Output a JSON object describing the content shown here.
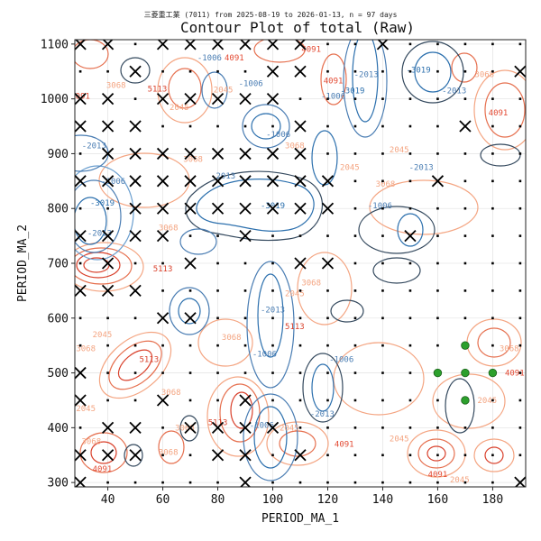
{
  "chart_data": {
    "type": "contour",
    "title": "Contour Plot of total (Raw)",
    "subtitle": "三菱重工業 (7011) from 2025-08-19 to 2026-01-13, n = 97 days",
    "xlabel": "PERIOD_MA_1",
    "ylabel": "PERIOD_MA_2",
    "xlim": [
      28,
      192
    ],
    "ylim": [
      292,
      1108
    ],
    "x_ticks": [
      "40",
      "60",
      "80",
      "100",
      "120",
      "140",
      "160",
      "180"
    ],
    "y_ticks": [
      "300",
      "400",
      "500",
      "600",
      "700",
      "800",
      "900",
      "1000",
      "1100"
    ],
    "grid": true,
    "colormap": "diverging blue-red",
    "colors": {
      "negative": "#2b6fad",
      "negative_dark": "#34495e",
      "positive": "#d9402b",
      "positive_light": "#f4a582",
      "best_marker": "#2ca02c"
    },
    "contour_labels": [
      {
        "x": 30,
        "y": 1000,
        "text": "4091",
        "color": "#e34a33"
      },
      {
        "x": 43,
        "y": 1020,
        "text": "3068",
        "color": "#f4a582"
      },
      {
        "x": 35,
        "y": 910,
        "text": "-2013",
        "color": "#4a7db3"
      },
      {
        "x": 42,
        "y": 845,
        "text": "-1006",
        "color": "#4a7db3"
      },
      {
        "x": 38,
        "y": 805,
        "text": "-3019",
        "color": "#2b6fad"
      },
      {
        "x": 66,
        "y": 980,
        "text": "2045",
        "color": "#f4a582"
      },
      {
        "x": 58,
        "y": 1013,
        "text": "5113",
        "color": "#d9402b"
      },
      {
        "x": 71,
        "y": 885,
        "text": "3068",
        "color": "#f4a582"
      },
      {
        "x": 82,
        "y": 1012,
        "text": "2045",
        "color": "#f4a582"
      },
      {
        "x": 86,
        "y": 1070,
        "text": "4091",
        "color": "#e34a33"
      },
      {
        "x": 77,
        "y": 1070,
        "text": "-1006",
        "color": "#4a7db3"
      },
      {
        "x": 92,
        "y": 1023,
        "text": "-1006",
        "color": "#4a7db3"
      },
      {
        "x": 114,
        "y": 1086,
        "text": "4091",
        "color": "#e34a33"
      },
      {
        "x": 122,
        "y": 1028,
        "text": "4091",
        "color": "#e34a33"
      },
      {
        "x": 129,
        "y": 1010,
        "text": "-3019",
        "color": "#2b6fad"
      },
      {
        "x": 134,
        "y": 1040,
        "text": "-2013",
        "color": "#4a7db3"
      },
      {
        "x": 153,
        "y": 1048,
        "text": "-3019",
        "color": "#2b6fad"
      },
      {
        "x": 177,
        "y": 1040,
        "text": "3068",
        "color": "#f4a582"
      },
      {
        "x": 166,
        "y": 1010,
        "text": "-2013",
        "color": "#4a7db3"
      },
      {
        "x": 182,
        "y": 970,
        "text": "4091",
        "color": "#e34a33"
      },
      {
        "x": 154,
        "y": 870,
        "text": "-2013",
        "color": "#4a7db3"
      },
      {
        "x": 146,
        "y": 902,
        "text": "2045",
        "color": "#f4a582"
      },
      {
        "x": 141,
        "y": 840,
        "text": "3068",
        "color": "#f4a582"
      },
      {
        "x": 128,
        "y": 870,
        "text": "2045",
        "color": "#f4a582"
      },
      {
        "x": 122,
        "y": 1000,
        "text": "-1006",
        "color": "#4a7db3"
      },
      {
        "x": 102,
        "y": 930,
        "text": "-1006",
        "color": "#4a7db3"
      },
      {
        "x": 108,
        "y": 910,
        "text": "3068",
        "color": "#f4a582"
      },
      {
        "x": 100,
        "y": 800,
        "text": "-3019",
        "color": "#2b6fad"
      },
      {
        "x": 82,
        "y": 855,
        "text": "-2013",
        "color": "#4a7db3"
      },
      {
        "x": 139,
        "y": 800,
        "text": "-1006",
        "color": "#4a7db3"
      },
      {
        "x": 60,
        "y": 685,
        "text": "5113",
        "color": "#d9402b"
      },
      {
        "x": 62,
        "y": 760,
        "text": "3068",
        "color": "#f4a582"
      },
      {
        "x": 37,
        "y": 750,
        "text": "-2013",
        "color": "#4a7db3"
      },
      {
        "x": 114,
        "y": 660,
        "text": "3068",
        "color": "#f4a582"
      },
      {
        "x": 108,
        "y": 640,
        "text": "2045",
        "color": "#f4a582"
      },
      {
        "x": 100,
        "y": 610,
        "text": "-2013",
        "color": "#4a7db3"
      },
      {
        "x": 108,
        "y": 580,
        "text": "5113",
        "color": "#d9402b"
      },
      {
        "x": 125,
        "y": 520,
        "text": "-1006",
        "color": "#4a7db3"
      },
      {
        "x": 97,
        "y": 530,
        "text": "-1006",
        "color": "#4a7db3"
      },
      {
        "x": 85,
        "y": 560,
        "text": "3068",
        "color": "#f4a582"
      },
      {
        "x": 55,
        "y": 520,
        "text": "5113",
        "color": "#d9402b"
      },
      {
        "x": 38,
        "y": 565,
        "text": "2045",
        "color": "#f4a582"
      },
      {
        "x": 32,
        "y": 540,
        "text": "3068",
        "color": "#f4a582"
      },
      {
        "x": 63,
        "y": 460,
        "text": "3068",
        "color": "#f4a582"
      },
      {
        "x": 32,
        "y": 430,
        "text": "2045",
        "color": "#f4a582"
      },
      {
        "x": 68,
        "y": 395,
        "text": "3068",
        "color": "#f4a582"
      },
      {
        "x": 80,
        "y": 405,
        "text": "5113",
        "color": "#d9402b"
      },
      {
        "x": 96,
        "y": 400,
        "text": "-1006",
        "color": "#4a7db3"
      },
      {
        "x": 106,
        "y": 395,
        "text": "2045",
        "color": "#f4a582"
      },
      {
        "x": 118,
        "y": 420,
        "text": "-2013",
        "color": "#4a7db3"
      },
      {
        "x": 34,
        "y": 370,
        "text": "3068",
        "color": "#f4a582"
      },
      {
        "x": 38,
        "y": 320,
        "text": "4091",
        "color": "#e34a33"
      },
      {
        "x": 62,
        "y": 350,
        "text": "3068",
        "color": "#f4a582"
      },
      {
        "x": 126,
        "y": 365,
        "text": "4091",
        "color": "#e34a33"
      },
      {
        "x": 146,
        "y": 375,
        "text": "2045",
        "color": "#f4a582"
      },
      {
        "x": 160,
        "y": 310,
        "text": "4091",
        "color": "#e34a33"
      },
      {
        "x": 178,
        "y": 445,
        "text": "2045",
        "color": "#f4a582"
      },
      {
        "x": 186,
        "y": 540,
        "text": "3068",
        "color": "#f4a582"
      },
      {
        "x": 188,
        "y": 495,
        "text": "4091",
        "color": "#e34a33"
      },
      {
        "x": 168,
        "y": 300,
        "text": "2045",
        "color": "#f4a582"
      }
    ],
    "x_markers": [
      [
        30,
        1100
      ],
      [
        40,
        1100
      ],
      [
        60,
        1100
      ],
      [
        70,
        1100
      ],
      [
        80,
        1100
      ],
      [
        90,
        1100
      ],
      [
        100,
        1100
      ],
      [
        110,
        1100
      ],
      [
        140,
        1100
      ],
      [
        50,
        1050
      ],
      [
        100,
        1050
      ],
      [
        110,
        1050
      ],
      [
        190,
        1050
      ],
      [
        30,
        1000
      ],
      [
        40,
        1000
      ],
      [
        60,
        1000
      ],
      [
        70,
        1000
      ],
      [
        80,
        1000
      ],
      [
        90,
        1000
      ],
      [
        100,
        1000
      ],
      [
        30,
        950
      ],
      [
        40,
        950
      ],
      [
        50,
        950
      ],
      [
        110,
        950
      ],
      [
        170,
        950
      ],
      [
        40,
        900
      ],
      [
        50,
        900
      ],
      [
        60,
        900
      ],
      [
        70,
        900
      ],
      [
        80,
        900
      ],
      [
        90,
        900
      ],
      [
        100,
        900
      ],
      [
        110,
        900
      ],
      [
        30,
        850
      ],
      [
        40,
        850
      ],
      [
        50,
        850
      ],
      [
        60,
        850
      ],
      [
        70,
        850
      ],
      [
        80,
        850
      ],
      [
        90,
        850
      ],
      [
        100,
        850
      ],
      [
        110,
        850
      ],
      [
        120,
        850
      ],
      [
        160,
        850
      ],
      [
        50,
        800
      ],
      [
        60,
        800
      ],
      [
        70,
        800
      ],
      [
        80,
        800
      ],
      [
        90,
        800
      ],
      [
        100,
        800
      ],
      [
        110,
        800
      ],
      [
        120,
        800
      ],
      [
        30,
        750
      ],
      [
        40,
        750
      ],
      [
        50,
        750
      ],
      [
        60,
        750
      ],
      [
        90,
        750
      ],
      [
        150,
        750
      ],
      [
        40,
        700
      ],
      [
        70,
        700
      ],
      [
        110,
        700
      ],
      [
        120,
        700
      ],
      [
        30,
        650
      ],
      [
        40,
        650
      ],
      [
        50,
        650
      ],
      [
        60,
        600
      ],
      [
        70,
        600
      ],
      [
        30,
        500
      ],
      [
        30,
        450
      ],
      [
        60,
        450
      ],
      [
        90,
        450
      ],
      [
        40,
        400
      ],
      [
        50,
        400
      ],
      [
        70,
        400
      ],
      [
        80,
        400
      ],
      [
        90,
        400
      ],
      [
        100,
        400
      ],
      [
        30,
        350
      ],
      [
        40,
        350
      ],
      [
        50,
        350
      ],
      [
        80,
        350
      ],
      [
        90,
        350
      ],
      [
        110,
        350
      ],
      [
        30,
        300
      ],
      [
        90,
        300
      ],
      [
        190,
        300
      ]
    ],
    "dot_grid": {
      "x_start": 30,
      "x_end": 190,
      "x_step": 10,
      "y_start": 300,
      "y_end": 1100,
      "y_step": 50
    },
    "best_points": [
      [
        170,
        550
      ],
      [
        160,
        500
      ],
      [
        170,
        500
      ],
      [
        180,
        500
      ],
      [
        170,
        450
      ]
    ]
  }
}
